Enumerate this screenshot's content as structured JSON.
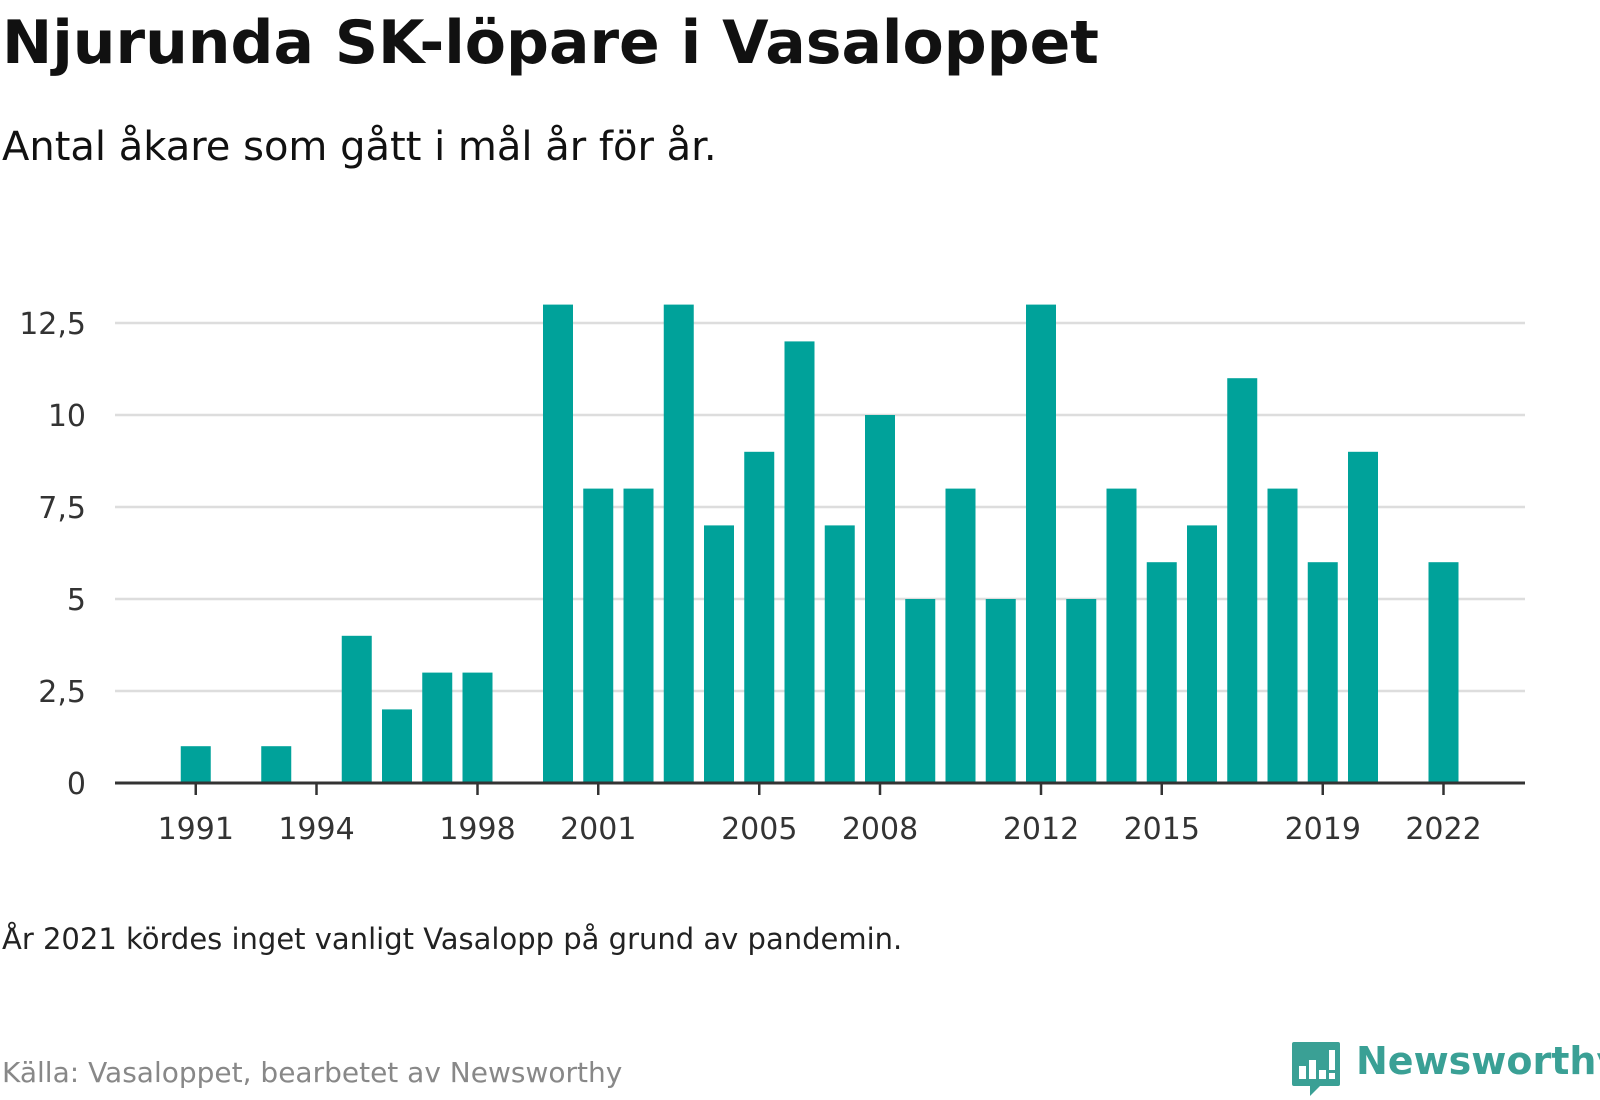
{
  "header": {
    "title": "Njurunda SK-löpare i Vasaloppet",
    "subtitle": "Antal åkare som gått i mål år för år."
  },
  "footer": {
    "note": "År 2021 kördes inget vanligt Vasalopp på grund av pandemin.",
    "source": "Källa: Vasaloppet, bearbetet av Newsworthy",
    "brand": "Newsworthy"
  },
  "colors": {
    "bar": "#00a29a",
    "grid": "#dddddd",
    "axis": "#333333",
    "brand": "#3aa095"
  },
  "icons": {
    "brand": "bar-chart-speech-bubble-icon"
  },
  "chart_data": {
    "type": "bar",
    "x": [
      1990,
      1991,
      1992,
      1993,
      1994,
      1995,
      1996,
      1997,
      1998,
      1999,
      2000,
      2001,
      2002,
      2003,
      2004,
      2005,
      2006,
      2007,
      2008,
      2009,
      2010,
      2011,
      2012,
      2013,
      2014,
      2015,
      2016,
      2017,
      2018,
      2019,
      2020,
      2021,
      2022
    ],
    "values": [
      0,
      1,
      0,
      1,
      0,
      4,
      2,
      3,
      3,
      0,
      13,
      8,
      8,
      13,
      7,
      9,
      12,
      7,
      10,
      5,
      8,
      5,
      13,
      5,
      8,
      6,
      7,
      11,
      8,
      6,
      9,
      0,
      6
    ],
    "x_tick_values": [
      1991,
      1994,
      1998,
      2001,
      2005,
      2008,
      2012,
      2015,
      2019,
      2022
    ],
    "x_tick_labels": [
      "1991",
      "1994",
      "1998",
      "2001",
      "2005",
      "2008",
      "2012",
      "2015",
      "2019",
      "2022"
    ],
    "y_ticks": [
      0,
      2.5,
      5,
      7.5,
      10,
      12.5
    ],
    "y_tick_labels": [
      "0",
      "2,5",
      "5",
      "7,5",
      "10",
      "12,5"
    ],
    "ylim": [
      0,
      13
    ],
    "xlabel": "",
    "ylabel": "",
    "grid": true,
    "legend": "none"
  }
}
